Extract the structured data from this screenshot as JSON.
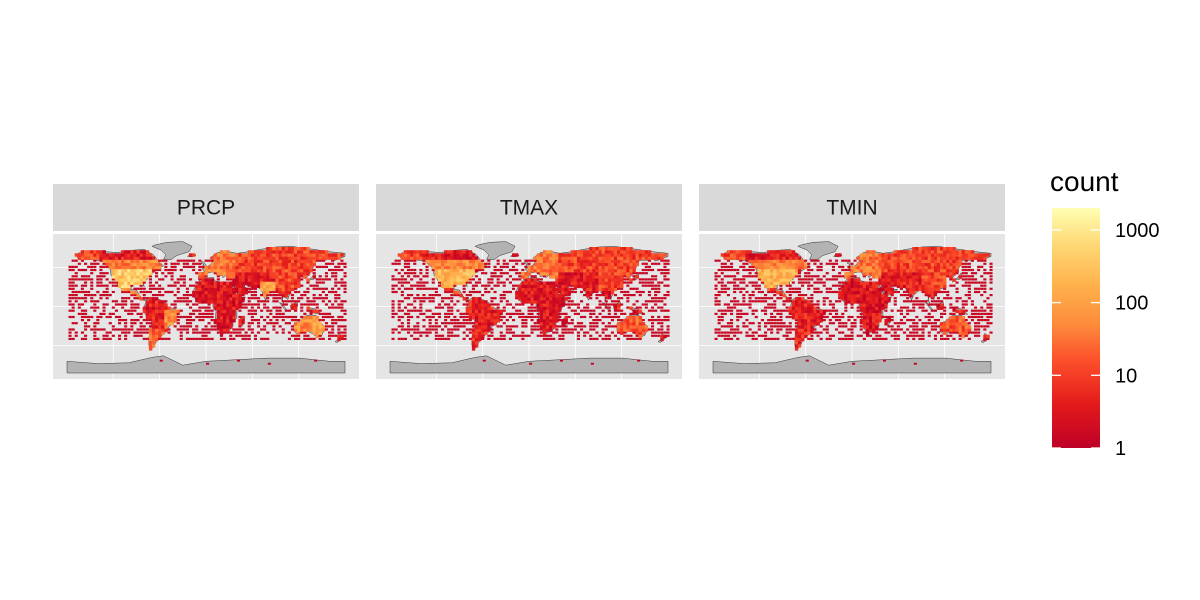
{
  "chart_data": {
    "type": "heatmap",
    "description_free": true,
    "facets": [
      "PRCP",
      "TMAX",
      "TMIN"
    ],
    "fill_scale": {
      "title": "count",
      "transform": "log10",
      "limits": [
        1,
        2000
      ],
      "breaks": [
        1,
        10,
        100,
        1000
      ],
      "break_labels": [
        "1",
        "10",
        "100",
        "1000"
      ],
      "low_color": "#bd0026",
      "high_color": "#ffffb2",
      "palette": [
        "#bd0026",
        "#e31a1c",
        "#fc4e2a",
        "#fd8d3c",
        "#feb24c",
        "#fed976",
        "#ffffb2"
      ]
    },
    "land_color": "#b3b3b3",
    "panel_background": "#e5e5e5",
    "strip_background": "#d9d9d9",
    "gridlines": true
  },
  "page": {
    "background": "#ffffff"
  }
}
